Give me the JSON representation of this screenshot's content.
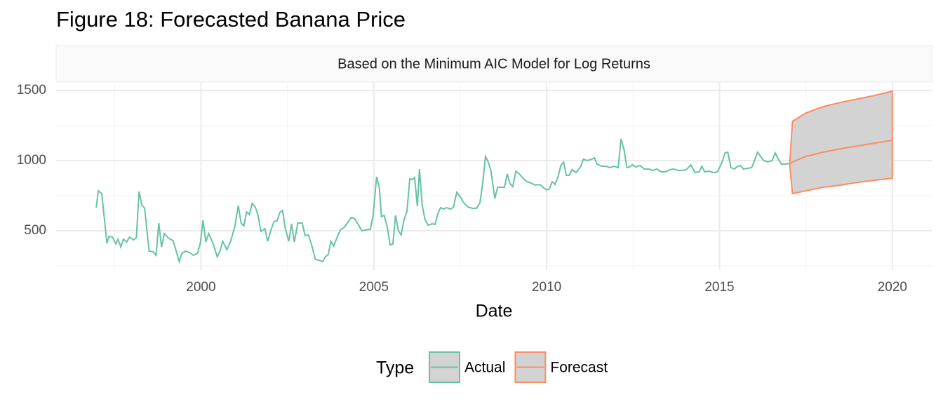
{
  "chart_data": {
    "type": "line",
    "title": "Figure 18: Forecasted Banana Price",
    "subtitle": "Based on the Minimum AIC Model for Log Returns",
    "x_label": "Date",
    "legend_title": "Type",
    "legend_position": "bottom",
    "grid": true,
    "ribbon_color": "#d3d3d3",
    "xlim": [
      1995.81,
      2021.14
    ],
    "ylim": [
      220,
      1555
    ],
    "xticks": [
      2000,
      2005,
      2010,
      2015,
      2020
    ],
    "yticks": [
      500,
      1000,
      1500
    ],
    "series": [
      {
        "name": "Actual",
        "color": "#66c2a5",
        "x": [
          1996.97,
          1997.03,
          1997.13,
          1997.28,
          1997.34,
          1997.44,
          1997.54,
          1997.6,
          1997.68,
          1997.76,
          1997.85,
          1997.93,
          1998.05,
          1998.13,
          1998.21,
          1998.29,
          1998.37,
          1998.5,
          1998.62,
          1998.7,
          1998.78,
          1998.86,
          1998.94,
          1999.07,
          1999.19,
          1999.29,
          1999.37,
          1999.45,
          1999.55,
          1999.67,
          1999.78,
          1999.9,
          1999.98,
          2000.06,
          2000.14,
          2000.22,
          2000.35,
          2000.47,
          2000.55,
          2000.63,
          2000.75,
          2000.85,
          2000.98,
          2001.08,
          2001.16,
          2001.24,
          2001.32,
          2001.4,
          2001.48,
          2001.57,
          2001.65,
          2001.73,
          2001.85,
          2001.93,
          2002.03,
          2002.11,
          2002.2,
          2002.28,
          2002.36,
          2002.44,
          2002.54,
          2002.62,
          2002.7,
          2002.8,
          2002.93,
          2003.01,
          2003.11,
          2003.21,
          2003.31,
          2003.41,
          2003.52,
          2003.6,
          2003.68,
          2003.76,
          2003.84,
          2003.94,
          2004.04,
          2004.15,
          2004.25,
          2004.35,
          2004.45,
          2004.55,
          2004.65,
          2004.76,
          2004.9,
          2004.98,
          2005.08,
          2005.16,
          2005.22,
          2005.3,
          2005.39,
          2005.47,
          2005.55,
          2005.63,
          2005.71,
          2005.79,
          2005.87,
          2005.96,
          2006.04,
          2006.12,
          2006.18,
          2006.26,
          2006.32,
          2006.4,
          2006.48,
          2006.57,
          2006.69,
          2006.77,
          2006.85,
          2006.93,
          2007.03,
          2007.11,
          2007.2,
          2007.3,
          2007.4,
          2007.48,
          2007.6,
          2007.72,
          2007.85,
          2007.97,
          2008.07,
          2008.15,
          2008.23,
          2008.31,
          2008.39,
          2008.5,
          2008.58,
          2008.7,
          2008.78,
          2008.86,
          2008.94,
          2009.02,
          2009.11,
          2009.19,
          2009.31,
          2009.43,
          2009.55,
          2009.67,
          2009.8,
          2009.92,
          2010.0,
          2010.08,
          2010.16,
          2010.24,
          2010.33,
          2010.41,
          2010.49,
          2010.57,
          2010.65,
          2010.73,
          2010.85,
          2010.98,
          2011.06,
          2011.18,
          2011.3,
          2011.38,
          2011.46,
          2011.59,
          2011.71,
          2011.83,
          2011.95,
          2012.07,
          2012.15,
          2012.24,
          2012.32,
          2012.4,
          2012.48,
          2012.58,
          2012.7,
          2012.83,
          2012.95,
          2013.07,
          2013.19,
          2013.31,
          2013.43,
          2013.56,
          2013.68,
          2013.8,
          2013.92,
          2014.04,
          2014.17,
          2014.29,
          2014.41,
          2014.49,
          2014.57,
          2014.7,
          2014.82,
          2014.94,
          2015.06,
          2015.16,
          2015.24,
          2015.33,
          2015.43,
          2015.53,
          2015.61,
          2015.69,
          2015.81,
          2015.93,
          2016.02,
          2016.1,
          2016.2,
          2016.28,
          2016.4,
          2016.52,
          2016.61,
          2016.69,
          2016.79,
          2016.91,
          2017.03
        ],
        "values": [
          665,
          785,
          765,
          410,
          460,
          455,
          405,
          440,
          385,
          440,
          420,
          455,
          435,
          450,
          780,
          685,
          660,
          355,
          350,
          325,
          555,
          385,
          480,
          445,
          430,
          350,
          280,
          340,
          355,
          345,
          325,
          340,
          410,
          575,
          420,
          480,
          410,
          315,
          355,
          425,
          365,
          420,
          530,
          680,
          555,
          535,
          635,
          615,
          695,
          670,
          610,
          495,
          515,
          425,
          510,
          565,
          570,
          630,
          645,
          515,
          425,
          550,
          420,
          555,
          555,
          465,
          470,
          390,
          295,
          290,
          280,
          315,
          330,
          425,
          390,
          455,
          510,
          525,
          560,
          595,
          585,
          545,
          500,
          505,
          510,
          610,
          885,
          805,
          600,
          610,
          525,
          400,
          405,
          610,
          500,
          470,
          575,
          640,
          870,
          865,
          880,
          675,
          940,
          680,
          580,
          540,
          550,
          545,
          620,
          665,
          655,
          665,
          655,
          665,
          775,
          750,
          700,
          670,
          660,
          660,
          700,
          840,
          1030,
          990,
          925,
          730,
          810,
          810,
          810,
          905,
          835,
          815,
          925,
          910,
          875,
          850,
          840,
          825,
          830,
          805,
          790,
          800,
          850,
          830,
          885,
          965,
          990,
          895,
          895,
          935,
          915,
          955,
          1010,
          1000,
          1010,
          1020,
          975,
          960,
          960,
          950,
          960,
          950,
          1155,
          1075,
          950,
          955,
          970,
          955,
          965,
          940,
          940,
          930,
          940,
          920,
          920,
          935,
          940,
          930,
          930,
          935,
          970,
          915,
          920,
          960,
          920,
          925,
          915,
          920,
          980,
          1055,
          1060,
          950,
          940,
          960,
          965,
          940,
          945,
          950,
          1005,
          1060,
          1025,
          1000,
          990,
          1000,
          1055,
          1015,
          975,
          975,
          980
        ]
      },
      {
        "name": "Forecast",
        "color": "#fc8d62",
        "x": [
          2017.03,
          2017.11,
          2017.5,
          2018,
          2018.5,
          2019,
          2019.5,
          2020
        ],
        "values": [
          975,
          990,
          1030,
          1060,
          1085,
          1105,
          1125,
          1145
        ],
        "lower": [
          975,
          765,
          785,
          810,
          825,
          845,
          860,
          875
        ],
        "upper": [
          975,
          1280,
          1340,
          1385,
          1415,
          1440,
          1465,
          1495
        ]
      }
    ]
  }
}
